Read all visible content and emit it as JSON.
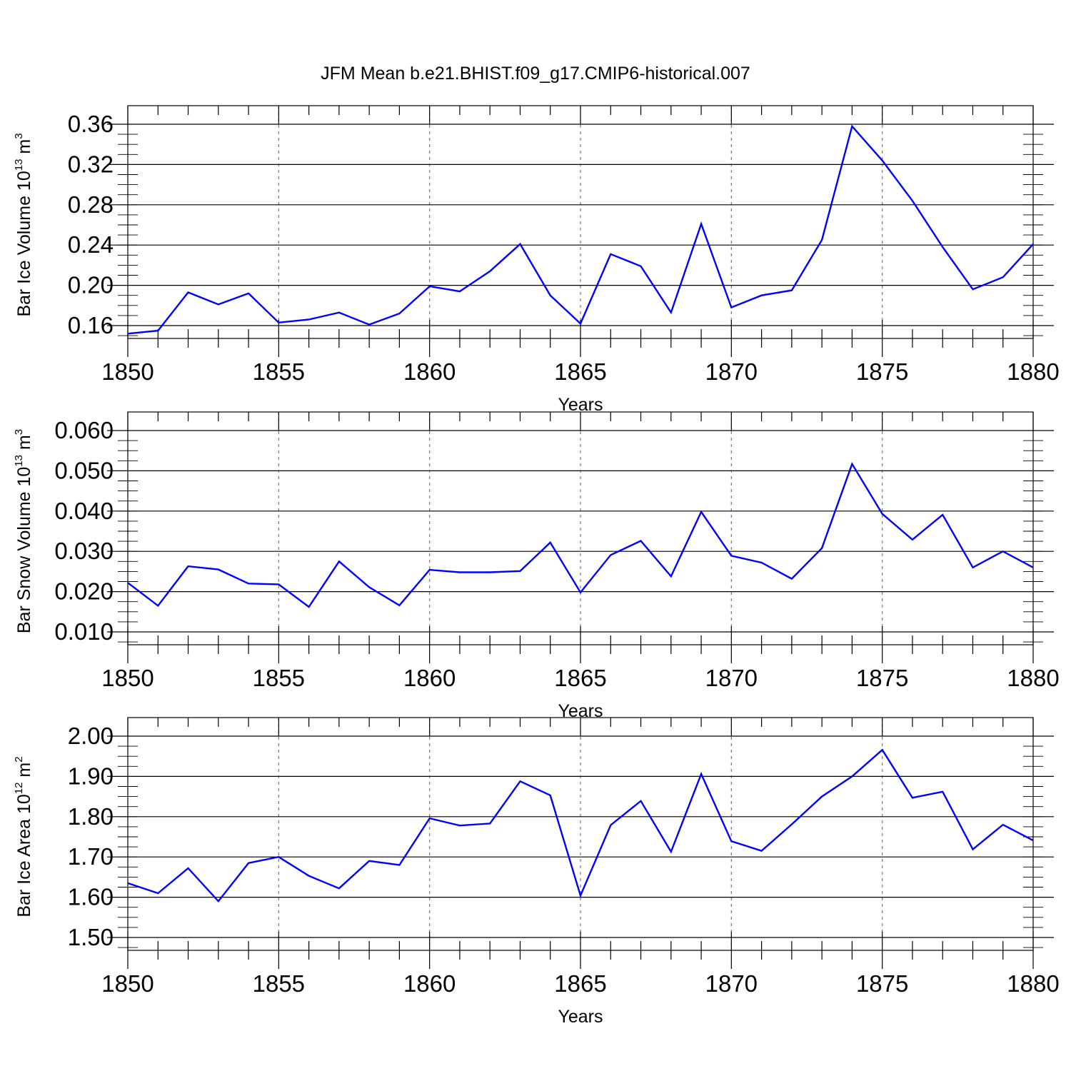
{
  "title": "JFM Mean b.e21.BHIST.f09_g17.CMIP6-historical.007",
  "line_color": "#0000ff",
  "chart_data": [
    {
      "type": "line",
      "ylabel": "Bar Ice Volume 10",
      "ylabel_exp": "13",
      "ylabel_unit": "m",
      "ylabel_unit_exp": "3",
      "xlabel": "Years",
      "xlim": [
        1850,
        1880
      ],
      "ylim": [
        0.15,
        0.36
      ],
      "yticks": [
        0.16,
        0.2,
        0.24,
        0.28,
        0.32,
        0.36
      ],
      "ytick_labels": [
        "0.16",
        "0.20",
        "0.24",
        "0.28",
        "0.32",
        "0.36"
      ],
      "xticks": [
        1850,
        1855,
        1860,
        1865,
        1870,
        1875,
        1880
      ],
      "xtick_labels": [
        "1850",
        "1855",
        "1860",
        "1865",
        "1870",
        "1875",
        "1880"
      ],
      "x": [
        1850,
        1851,
        1852,
        1853,
        1854,
        1855,
        1856,
        1857,
        1858,
        1859,
        1860,
        1861,
        1862,
        1863,
        1864,
        1865,
        1866,
        1867,
        1868,
        1869,
        1870,
        1871,
        1872,
        1873,
        1874,
        1875,
        1876,
        1877,
        1878,
        1879,
        1880
      ],
      "y": [
        0.152,
        0.155,
        0.193,
        0.181,
        0.192,
        0.163,
        0.166,
        0.173,
        0.161,
        0.172,
        0.199,
        0.194,
        0.214,
        0.241,
        0.19,
        0.162,
        0.231,
        0.219,
        0.173,
        0.261,
        0.178,
        0.19,
        0.195,
        0.245,
        0.358,
        0.324,
        0.284,
        0.238,
        0.196,
        0.208,
        0.241
      ],
      "grid": "vertical dashed at major x ticks"
    },
    {
      "type": "line",
      "ylabel": "Bar Snow Volume 10",
      "ylabel_exp": "13",
      "ylabel_unit": "m",
      "ylabel_unit_exp": "3",
      "xlabel": "Years",
      "xlim": [
        1850,
        1880
      ],
      "ylim": [
        0.01,
        0.06
      ],
      "yticks": [
        0.01,
        0.02,
        0.03,
        0.04,
        0.05,
        0.06
      ],
      "ytick_labels": [
        "0.010",
        "0.020",
        "0.030",
        "0.040",
        "0.050",
        "0.060"
      ],
      "xticks": [
        1850,
        1855,
        1860,
        1865,
        1870,
        1875,
        1880
      ],
      "xtick_labels": [
        "1850",
        "1855",
        "1860",
        "1865",
        "1870",
        "1875",
        "1880"
      ],
      "x": [
        1850,
        1851,
        1852,
        1853,
        1854,
        1855,
        1856,
        1857,
        1858,
        1859,
        1860,
        1861,
        1862,
        1863,
        1864,
        1865,
        1866,
        1867,
        1868,
        1869,
        1870,
        1871,
        1872,
        1873,
        1874,
        1875,
        1876,
        1877,
        1878,
        1879,
        1880
      ],
      "y": [
        0.0222,
        0.0165,
        0.0263,
        0.0255,
        0.022,
        0.0218,
        0.0162,
        0.0275,
        0.0211,
        0.0166,
        0.0254,
        0.0248,
        0.0248,
        0.0251,
        0.0322,
        0.0198,
        0.0291,
        0.0326,
        0.0238,
        0.0398,
        0.0289,
        0.0272,
        0.0232,
        0.0308,
        0.0517,
        0.0393,
        0.0329,
        0.0391,
        0.026,
        0.03,
        0.026
      ],
      "grid": "vertical dashed at major x ticks"
    },
    {
      "type": "line",
      "ylabel": "Bar Ice Area 10",
      "ylabel_exp": "12",
      "ylabel_unit": "m",
      "ylabel_unit_exp": "2",
      "xlabel": "Years",
      "xlim": [
        1850,
        1880
      ],
      "ylim": [
        1.5,
        2.0
      ],
      "yticks": [
        1.5,
        1.6,
        1.7,
        1.8,
        1.9,
        2.0
      ],
      "ytick_labels": [
        "1.50",
        "1.60",
        "1.70",
        "1.80",
        "1.90",
        "2.00"
      ],
      "xticks": [
        1850,
        1855,
        1860,
        1865,
        1870,
        1875,
        1880
      ],
      "xtick_labels": [
        "1850",
        "1855",
        "1860",
        "1865",
        "1870",
        "1875",
        "1880"
      ],
      "x": [
        1850,
        1851,
        1852,
        1853,
        1854,
        1855,
        1856,
        1857,
        1858,
        1859,
        1860,
        1861,
        1862,
        1863,
        1864,
        1865,
        1866,
        1867,
        1868,
        1869,
        1870,
        1871,
        1872,
        1873,
        1874,
        1875,
        1876,
        1877,
        1878,
        1879,
        1880
      ],
      "y": [
        1.635,
        1.61,
        1.672,
        1.59,
        1.685,
        1.7,
        1.653,
        1.622,
        1.69,
        1.68,
        1.796,
        1.778,
        1.783,
        1.888,
        1.853,
        1.604,
        1.779,
        1.839,
        1.713,
        1.906,
        1.739,
        1.715,
        1.781,
        1.85,
        1.9,
        1.966,
        1.847,
        1.862,
        1.719,
        1.78,
        1.741
      ],
      "grid": "vertical dashed at major x ticks"
    }
  ]
}
